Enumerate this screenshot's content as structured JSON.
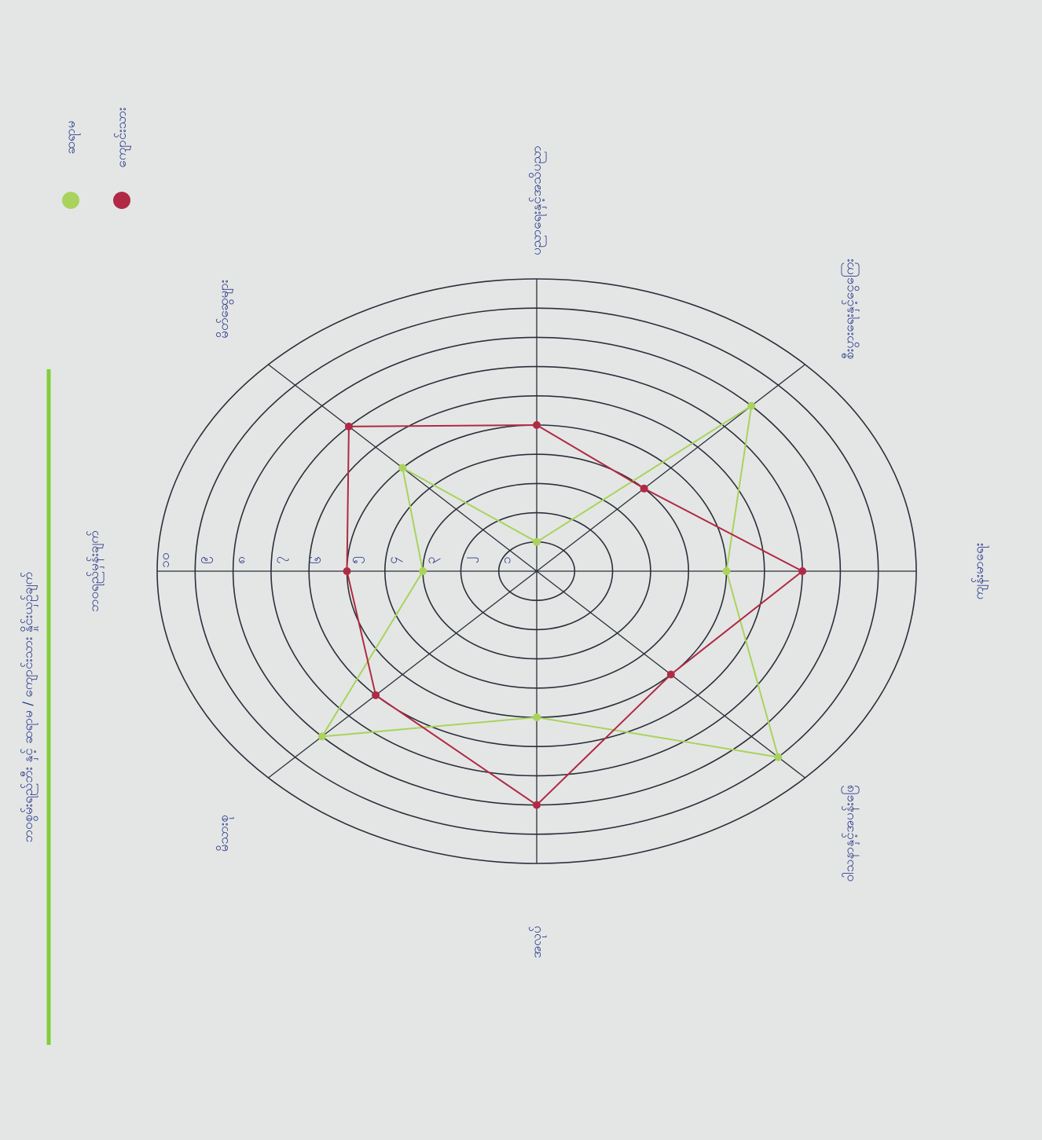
{
  "chart_data": {
    "type": "radar",
    "title": "ဘဝစွမ်းရည်ဘီး နှင့် ဆရာမ / ကျောင်းသား နှိုင်းယှဉ်ချက်",
    "categories": [
      "ဘဝရည်မှန်းချက်",
      "မိတ်ဆွေများ",
      "ပညာရေးနှင့်အသိပညာ",
      "စီးပွားရေးနှင့်ငွေကြေး",
      "ကျန်းမာရေး",
      "ဝါသနာနှင့်အပန်းဖြေ",
      "အလုပ်",
      "မိသားစု"
    ],
    "series": [
      {
        "name": "ဆရာမ",
        "color": "#a9d35c",
        "values": [
          3,
          5,
          1,
          8,
          5,
          9,
          5,
          8
        ]
      },
      {
        "name": "ကျောင်းသား",
        "color": "#b02a45",
        "values": [
          5,
          7,
          5,
          4,
          7,
          5,
          8,
          6
        ]
      }
    ],
    "rlim": [
      0,
      10
    ],
    "rticks": [
      {
        "value": 1,
        "label": "၁"
      },
      {
        "value": 2,
        "label": "၂"
      },
      {
        "value": 3,
        "label": "၃"
      },
      {
        "value": 4,
        "label": "၄"
      },
      {
        "value": 5,
        "label": "၅"
      },
      {
        "value": 6,
        "label": "၆"
      },
      {
        "value": 7,
        "label": "၇"
      },
      {
        "value": 8,
        "label": "၈"
      },
      {
        "value": 9,
        "label": "၉"
      },
      {
        "value": 10,
        "label": "၁၀"
      }
    ]
  }
}
